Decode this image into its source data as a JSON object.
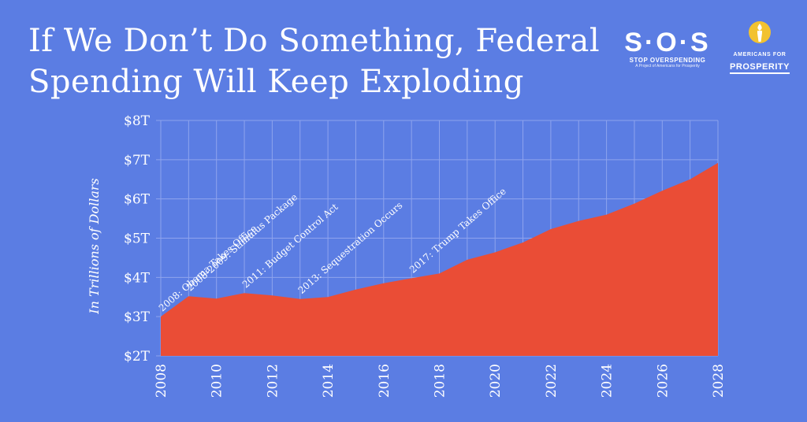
{
  "header": {
    "title_line1": "If We Don’t Do Something, Federal",
    "title_line2": "Spending Will Keep Exploding"
  },
  "logos": {
    "sos": {
      "mark": "S·O·S",
      "tagline": "STOP OVERSPENDING",
      "subline": "A Project of Americans for Prosperity"
    },
    "afp": {
      "line1": "AMERICANS FOR",
      "line2": "PROSPERITY",
      "icon": "torch-icon"
    }
  },
  "colors": {
    "background": "#5b7de3",
    "area": "#ea4d36",
    "grid": "#8ea4ee",
    "text": "#ffffff"
  },
  "chart_data": {
    "type": "area",
    "title": "If We Don’t Do Something, Federal Spending Will Keep Exploding",
    "ylabel": "In Trillions of Dollars",
    "xlabel": "",
    "x": [
      2008,
      2009,
      2010,
      2011,
      2012,
      2013,
      2014,
      2015,
      2016,
      2017,
      2018,
      2019,
      2020,
      2021,
      2022,
      2023,
      2024,
      2025,
      2026,
      2027,
      2028
    ],
    "series": [
      {
        "values": [
          3.0,
          3.52,
          3.46,
          3.6,
          3.54,
          3.45,
          3.5,
          3.69,
          3.85,
          3.98,
          4.1,
          4.45,
          4.64,
          4.89,
          5.23,
          5.44,
          5.6,
          5.88,
          6.21,
          6.5,
          6.92
        ]
      }
    ],
    "ylim": [
      2,
      8
    ],
    "xlim": [
      2008,
      2028
    ],
    "yticks": [
      2,
      3,
      4,
      5,
      6,
      7,
      8
    ],
    "ytick_labels": [
      "$2T",
      "$3T",
      "$4T",
      "$5T",
      "$6T",
      "$7T",
      "$8T"
    ],
    "xticks": [
      2008,
      2010,
      2012,
      2014,
      2016,
      2018,
      2020,
      2022,
      2024,
      2026,
      2028
    ],
    "xtick_labels": [
      "2008",
      "2010",
      "2012",
      "2014",
      "2016",
      "2018",
      "2020",
      "2022",
      "2024",
      "2026",
      "2028"
    ],
    "grid": true,
    "annotations": [
      {
        "text": "2008: Obama Takes Office",
        "x": 2008,
        "y": 3.0
      },
      {
        "text": "2008-2009: Stimulus Package",
        "x": 2009,
        "y": 3.52
      },
      {
        "text": "2011: Budget Control Act",
        "x": 2011,
        "y": 3.6
      },
      {
        "text": "2013: Sequestration Occurs",
        "x": 2013,
        "y": 3.45
      },
      {
        "text": "2017: Trump Takes Office",
        "x": 2017,
        "y": 3.98
      }
    ]
  }
}
